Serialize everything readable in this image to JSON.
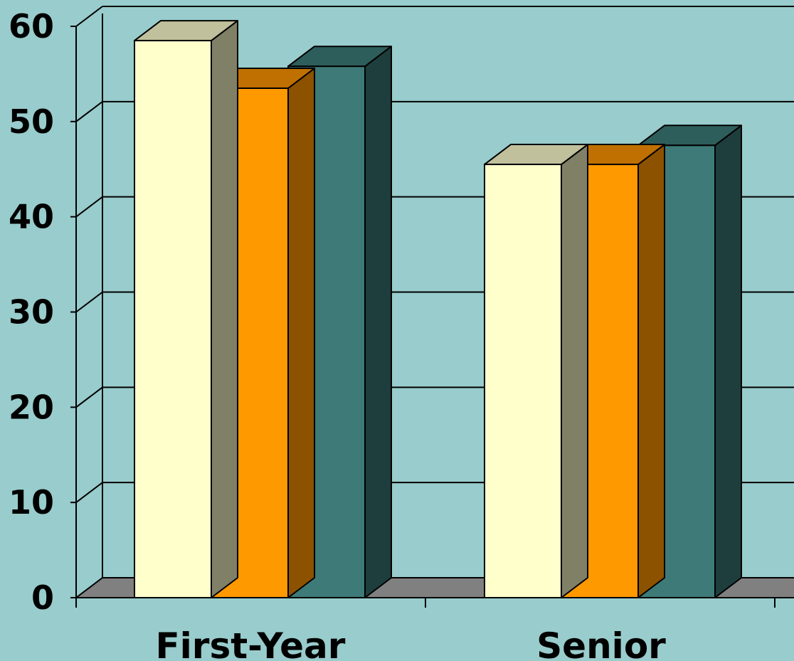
{
  "chart_data": {
    "type": "bar",
    "title": "",
    "xlabel": "",
    "ylabel": "",
    "categories": [
      "First-Year",
      "Senior"
    ],
    "series": [
      {
        "values": [
          58.5,
          45.5
        ]
      },
      {
        "values": [
          53.5,
          45.5
        ]
      },
      {
        "values": [
          55.8,
          47.5
        ]
      }
    ],
    "ylim": [
      0,
      60
    ],
    "yticks": [
      "0",
      "10",
      "20",
      "30",
      "40",
      "50",
      "60"
    ],
    "grid": true,
    "legend": "none",
    "style": "3d-clustered-column"
  },
  "colors": {
    "background": "#99cccc",
    "floor": "#808080",
    "series": [
      {
        "front": "#ffffcc",
        "top": "#c0c09c",
        "side": "#808066"
      },
      {
        "front": "#ff9900",
        "top": "#c07000",
        "side": "#8c5200"
      },
      {
        "front": "#3d7a78",
        "top": "#2e5e5c",
        "side": "#1e3e3d"
      }
    ]
  }
}
